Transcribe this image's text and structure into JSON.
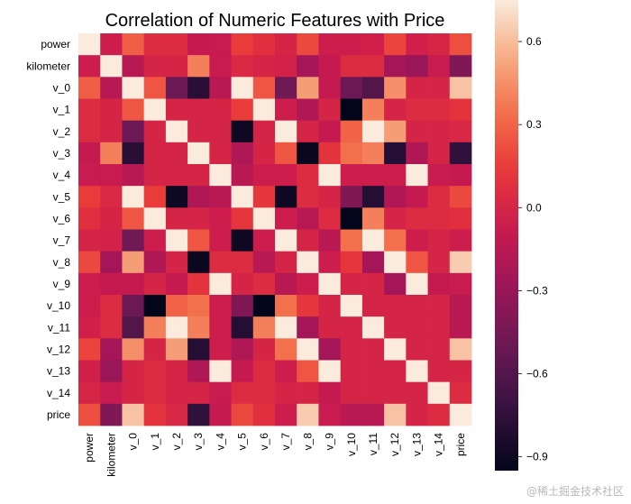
{
  "chart_data": {
    "type": "heatmap",
    "title": "Correlation of Numeric Features with Price",
    "xlabel": "",
    "ylabel": "",
    "labels": [
      "power",
      "kilometer",
      "v_0",
      "v_1",
      "v_2",
      "v_3",
      "v_4",
      "v_5",
      "v_6",
      "v_7",
      "v_8",
      "v_9",
      "v_10",
      "v_11",
      "v_12",
      "v_13",
      "v_14",
      "price"
    ],
    "matrix": [
      [
        1.0,
        -0.05,
        0.28,
        0.05,
        0.05,
        -0.1,
        -0.08,
        0.15,
        0.08,
        0.0,
        0.2,
        -0.05,
        -0.05,
        -0.03,
        0.18,
        -0.03,
        0.01,
        0.22
      ],
      [
        -0.05,
        1.0,
        -0.15,
        0.0,
        0.0,
        0.4,
        -0.08,
        0.03,
        0.0,
        -0.02,
        -0.25,
        -0.1,
        0.05,
        0.05,
        -0.25,
        -0.3,
        -0.08,
        -0.4
      ],
      [
        0.28,
        -0.15,
        1.0,
        0.25,
        -0.5,
        -0.78,
        -0.15,
        0.9,
        0.25,
        -0.48,
        0.5,
        -0.1,
        -0.5,
        -0.6,
        0.45,
        0.0,
        0.0,
        0.62
      ],
      [
        0.05,
        0.0,
        0.25,
        1.0,
        0.0,
        0.0,
        0.0,
        0.15,
        0.9,
        -0.05,
        -0.2,
        0.0,
        -0.96,
        0.4,
        0.0,
        0.05,
        0.05,
        0.1
      ],
      [
        0.05,
        0.0,
        -0.5,
        0.0,
        1.0,
        0.0,
        0.0,
        -0.9,
        0.0,
        0.82,
        0.0,
        -0.1,
        0.3,
        0.82,
        0.5,
        0.0,
        0.0,
        0.02
      ],
      [
        -0.1,
        0.4,
        -0.78,
        0.0,
        0.0,
        1.0,
        0.0,
        -0.2,
        0.0,
        0.25,
        -0.92,
        0.1,
        0.35,
        0.4,
        -0.8,
        -0.2,
        0.0,
        -0.75
      ],
      [
        -0.08,
        -0.08,
        -0.15,
        0.0,
        0.0,
        0.0,
        1.0,
        -0.15,
        -0.05,
        -0.05,
        0.05,
        0.9,
        -0.05,
        -0.05,
        -0.05,
        0.9,
        -0.08,
        -0.1
      ],
      [
        0.15,
        0.03,
        0.9,
        0.15,
        -0.9,
        -0.2,
        -0.15,
        1.0,
        0.12,
        -0.9,
        0.05,
        0.0,
        -0.4,
        -0.8,
        -0.2,
        -0.1,
        0.05,
        0.2
      ],
      [
        0.08,
        0.0,
        0.25,
        0.9,
        0.0,
        0.0,
        -0.05,
        0.12,
        1.0,
        -0.05,
        -0.15,
        0.05,
        -0.96,
        0.4,
        0.0,
        0.05,
        0.05,
        0.08
      ],
      [
        0.0,
        -0.02,
        -0.48,
        -0.05,
        0.82,
        0.25,
        -0.05,
        -0.9,
        -0.05,
        1.0,
        0.0,
        -0.15,
        0.35,
        0.85,
        0.35,
        -0.05,
        0.0,
        -0.05
      ],
      [
        0.2,
        -0.25,
        0.5,
        -0.2,
        0.0,
        -0.92,
        0.05,
        0.05,
        -0.15,
        0.0,
        1.0,
        -0.05,
        0.12,
        -0.25,
        0.8,
        0.25,
        0.0,
        0.65
      ],
      [
        -0.05,
        -0.1,
        -0.1,
        0.0,
        -0.1,
        0.1,
        0.9,
        0.0,
        0.05,
        -0.15,
        -0.05,
        1.0,
        0.0,
        0.0,
        -0.25,
        0.85,
        -0.1,
        -0.08
      ],
      [
        -0.05,
        0.05,
        -0.5,
        -0.96,
        0.3,
        0.35,
        -0.05,
        -0.4,
        -0.96,
        0.35,
        0.12,
        0.0,
        1.0,
        0.0,
        0.0,
        0.0,
        0.0,
        -0.15
      ],
      [
        -0.03,
        0.05,
        -0.6,
        0.4,
        0.82,
        0.4,
        -0.05,
        -0.8,
        0.4,
        0.85,
        -0.25,
        0.0,
        0.0,
        1.0,
        0.0,
        0.0,
        0.0,
        -0.15
      ],
      [
        0.18,
        -0.25,
        0.45,
        0.0,
        0.5,
        -0.8,
        -0.05,
        -0.2,
        0.0,
        0.35,
        0.8,
        -0.25,
        0.0,
        0.0,
        1.0,
        0.0,
        0.0,
        0.62
      ],
      [
        -0.03,
        -0.3,
        0.0,
        0.05,
        0.0,
        -0.2,
        0.9,
        -0.1,
        0.05,
        -0.05,
        0.25,
        0.85,
        0.0,
        0.0,
        0.0,
        1.0,
        0.0,
        0.0
      ],
      [
        0.01,
        -0.08,
        0.0,
        0.05,
        0.0,
        0.0,
        -0.08,
        0.05,
        0.05,
        0.0,
        0.0,
        -0.1,
        0.0,
        0.0,
        0.0,
        0.0,
        1.0,
        0.05
      ],
      [
        0.22,
        -0.4,
        0.62,
        0.1,
        0.02,
        -0.75,
        -0.1,
        0.2,
        0.08,
        -0.05,
        0.65,
        -0.08,
        -0.15,
        -0.15,
        0.62,
        0.0,
        0.05,
        1.0
      ]
    ],
    "vmin": -0.95,
    "vmax": 0.75,
    "colormap": "rocket",
    "colorbar_ticks": [
      -0.9,
      -0.6,
      -0.3,
      0.0,
      0.3,
      0.6
    ],
    "colorbar_tick_labels": [
      "−0.9",
      "−0.6",
      "−0.3",
      "0.0",
      "0.3",
      "0.6"
    ],
    "grid": false,
    "legend": "colorbar-right"
  },
  "watermark": "@稀土掘金技术社区"
}
